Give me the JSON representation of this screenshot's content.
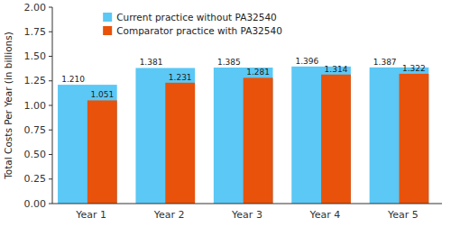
{
  "chart_data": {
    "type": "bar",
    "categories": [
      "Year 1",
      "Year 2",
      "Year 3",
      "Year 4",
      "Year 5"
    ],
    "series": [
      {
        "name": "Current practice without PA32540",
        "color": "#5bc8f5",
        "values": [
          1.21,
          1.381,
          1.385,
          1.396,
          1.387
        ],
        "value_labels": [
          "1.210",
          "1.381",
          "1.385",
          "1.396",
          "1.387"
        ]
      },
      {
        "name": "Comparator practice with PA32540",
        "color": "#e8520a",
        "values": [
          1.051,
          1.231,
          1.281,
          1.314,
          1.322
        ],
        "value_labels": [
          "1.051",
          "1.231",
          "1.281",
          "1.314",
          "1.322"
        ]
      }
    ],
    "ylabel": "Total Costs Per Year (in billions)",
    "ylim": [
      0.0,
      2.0
    ],
    "yticks": [
      {
        "value": 0.0,
        "label": "0.00"
      },
      0.25,
      {
        "value": 0.5,
        "label": "0.50"
      },
      0.75,
      {
        "value": 1.0,
        "label": "1.00"
      },
      1.25,
      {
        "value": 1.5,
        "label": "1.50"
      },
      1.75,
      {
        "value": 2.0,
        "label": "2.00"
      }
    ],
    "grid": false,
    "legend": "upper left",
    "data_labels": true
  }
}
